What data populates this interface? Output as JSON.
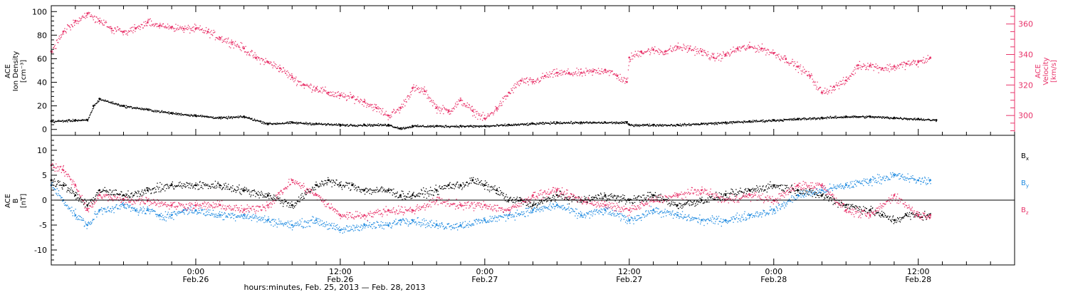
{
  "chart_data": [
    {
      "type": "scatter",
      "panel": "top",
      "left_axis_label": [
        "ACE",
        "Ion Density",
        "[cm⁻³]"
      ],
      "right_axis_label": [
        "ACE",
        "Velocity",
        "[km/s]"
      ],
      "x_label": "hours:minutes, Feb. 25, 2013 — Feb. 28, 2013",
      "xlim": [
        0,
        80
      ],
      "x_ticks": [
        {
          "x": 12,
          "time": "0:00",
          "date": "Feb.26"
        },
        {
          "x": 24,
          "time": "12:00",
          "date": "Feb.26"
        },
        {
          "x": 36,
          "time": "0:00",
          "date": "Feb.27"
        },
        {
          "x": 48,
          "time": "12:00",
          "date": "Feb.27"
        },
        {
          "x": 60,
          "time": "0:00",
          "date": "Feb.28"
        },
        {
          "x": 72,
          "time": "12:00",
          "date": "Feb.28"
        }
      ],
      "ylim_left": [
        -5,
        105
      ],
      "ylim_right": [
        287,
        372
      ],
      "y_ticks_left": [
        0,
        20,
        40,
        60,
        80,
        100
      ],
      "y_ticks_right": [
        300,
        320,
        340,
        360
      ],
      "colors": {
        "density": "#000000",
        "velocity": "#e8336a"
      },
      "series": [
        {
          "axis": "left",
          "values_x": [
            0,
            2,
            3,
            3.5,
            4,
            6,
            8,
            10,
            12,
            14,
            16,
            18,
            20,
            22,
            24,
            26,
            28,
            29,
            30,
            32,
            34,
            36,
            38,
            40,
            42,
            44,
            46,
            47.8,
            48,
            50,
            52,
            54,
            56,
            58,
            60,
            62,
            64,
            66,
            68,
            70,
            72,
            73.5
          ],
          "values_y": [
            7,
            8,
            8,
            20,
            26,
            20,
            17,
            14,
            12,
            10,
            11,
            5,
            6,
            5,
            4,
            4,
            4,
            1,
            3,
            3,
            3,
            3,
            4,
            5,
            6,
            6,
            6,
            6,
            4,
            4,
            4,
            5,
            6,
            7,
            8,
            9,
            10,
            11,
            11,
            10,
            9,
            8
          ]
        },
        {
          "axis": "right",
          "values_x": [
            0,
            1,
            2,
            3,
            4,
            5,
            6,
            7,
            8,
            9,
            10,
            11,
            12,
            13,
            14,
            15,
            16,
            17,
            18,
            19,
            20,
            21,
            22,
            23,
            24,
            25,
            26,
            27,
            28,
            29,
            30,
            31,
            32,
            33,
            34,
            35,
            36,
            37,
            38,
            39,
            40,
            41,
            42,
            43,
            44,
            45,
            46,
            47,
            47.8,
            48,
            49,
            50,
            51,
            52,
            53,
            54,
            55,
            56,
            57,
            58,
            59,
            60,
            61,
            62,
            63,
            64,
            65,
            66,
            67,
            68,
            69,
            70,
            71,
            72,
            73
          ],
          "values_y": [
            342,
            355,
            362,
            367,
            362,
            357,
            355,
            357,
            361,
            359,
            358,
            357,
            357,
            355,
            351,
            348,
            344,
            338,
            335,
            331,
            325,
            320,
            318,
            315,
            313,
            312,
            309,
            305,
            300,
            305,
            318,
            316,
            305,
            303,
            310,
            303,
            298,
            305,
            315,
            323,
            322,
            326,
            328,
            328,
            328,
            329,
            330,
            326,
            322,
            338,
            342,
            343,
            342,
            345,
            344,
            342,
            338,
            340,
            344,
            345,
            344,
            341,
            337,
            332,
            326,
            315,
            319,
            323,
            333,
            333,
            331,
            332,
            334,
            335,
            338
          ]
        }
      ]
    },
    {
      "type": "scatter",
      "panel": "bottom",
      "y_axis_label": [
        "ACE",
        "B",
        "[nT]"
      ],
      "ylim": [
        -13,
        13
      ],
      "y_ticks": [
        -10,
        -5,
        0,
        5,
        10
      ],
      "legend": [
        {
          "name": "B",
          "sub": "x",
          "color": "#000000"
        },
        {
          "name": "B",
          "sub": "y",
          "color": "#1f8ae0"
        },
        {
          "name": "B",
          "sub": "z",
          "color": "#e8336a"
        }
      ],
      "series": [
        {
          "key": "Bx",
          "values_x": [
            0,
            1,
            2,
            3,
            4,
            6,
            8,
            10,
            12,
            14,
            16,
            18,
            20,
            22,
            23,
            24,
            25,
            26,
            28,
            29,
            30,
            32,
            33,
            34,
            35,
            36,
            37,
            38,
            39,
            40,
            42,
            44,
            46,
            48,
            50,
            52,
            54,
            56,
            58,
            60,
            62,
            64,
            66,
            68,
            69,
            70,
            71,
            72,
            73
          ],
          "values_y": [
            4,
            3,
            1,
            -1,
            2,
            1,
            2,
            3,
            3,
            3,
            2,
            1,
            -1,
            3,
            4,
            3,
            3,
            2,
            2,
            1,
            1,
            2,
            3,
            3,
            4,
            3,
            2,
            0,
            0,
            -1,
            1,
            0,
            1,
            0,
            1,
            -1,
            0,
            1,
            2,
            3,
            2,
            1,
            -1,
            -2,
            -3,
            -4,
            -3,
            -3,
            -3
          ]
        },
        {
          "key": "By",
          "values_x": [
            0,
            1,
            2,
            3,
            4,
            6,
            7,
            8,
            9,
            10,
            11,
            12,
            14,
            16,
            18,
            20,
            22,
            24,
            26,
            28,
            29,
            30,
            32,
            34,
            36,
            38,
            40,
            42,
            44,
            46,
            48,
            50,
            52,
            54,
            56,
            58,
            60,
            62,
            64,
            66,
            68,
            70,
            72,
            73
          ],
          "values_y": [
            3,
            0,
            -3,
            -5,
            -2,
            -1,
            -2,
            -2,
            -3,
            -3,
            -2,
            -2,
            -3,
            -3,
            -4,
            -5,
            -4,
            -6,
            -5,
            -5,
            -4,
            -4,
            -5,
            -5,
            -4,
            -3,
            -2,
            -1,
            -3,
            -2,
            -4,
            -2,
            -3,
            -4,
            -4,
            -3,
            -2,
            1,
            2,
            3,
            4,
            5,
            4,
            4
          ]
        },
        {
          "key": "Bz",
          "values_x": [
            0,
            1,
            2,
            3,
            4,
            6,
            8,
            10,
            12,
            14,
            16,
            18,
            20,
            22,
            24,
            26,
            28,
            30,
            32,
            34,
            36,
            38,
            40,
            42,
            44,
            46,
            48,
            50,
            52,
            54,
            56,
            58,
            60,
            62,
            64,
            66,
            68,
            70,
            72,
            73
          ],
          "values_y": [
            7,
            6,
            3,
            -2,
            1,
            0,
            0,
            -1,
            -1,
            -1,
            -2,
            -1,
            4,
            1,
            -3,
            -3,
            -2,
            -2,
            0,
            -1,
            -1,
            -2,
            1,
            2,
            0,
            -1,
            -2,
            0,
            1,
            2,
            0,
            1,
            0,
            3,
            3,
            -2,
            -3,
            1,
            -3,
            -3
          ]
        }
      ]
    }
  ]
}
